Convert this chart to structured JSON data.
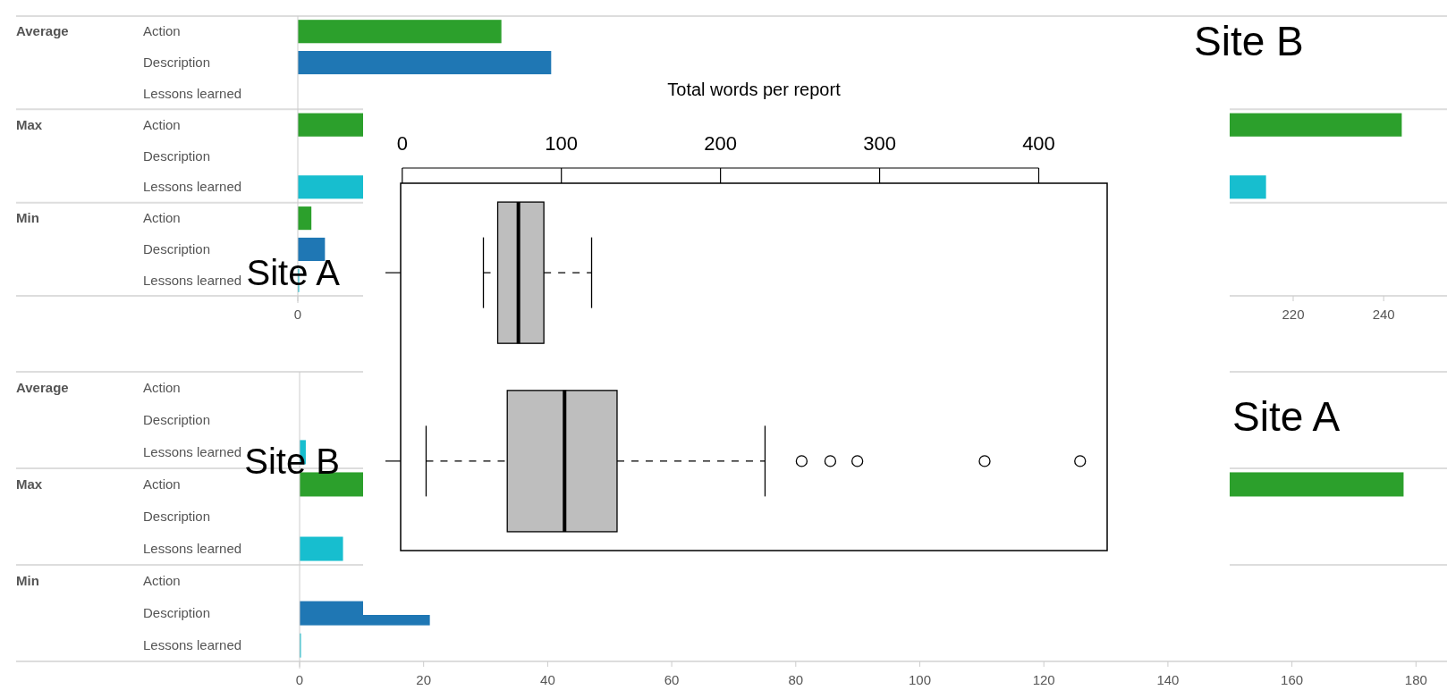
{
  "chart_data": [
    {
      "type": "bar",
      "orientation": "horizontal",
      "title": "Site B",
      "categories": [
        "Action",
        "Description",
        "Lessons learned",
        "Action",
        "Description",
        "Lessons learned",
        "Action",
        "Description",
        "Lessons learned"
      ],
      "values": [
        45,
        56,
        null,
        244,
        null,
        214,
        3,
        6,
        0
      ],
      "colors": [
        "#2ca02c",
        "#1f77b4",
        null,
        "#2ca02c",
        null,
        "#17becf",
        "#2ca02c",
        "#1f77b4",
        "#17becf"
      ],
      "annotations": [
        "Average",
        "Max",
        "Min"
      ],
      "xlim": [
        0,
        254
      ],
      "xticks": [
        0,
        220,
        240
      ]
    },
    {
      "type": "bar",
      "orientation": "horizontal",
      "title": "Site A",
      "categories": [
        "Action",
        "Description",
        "Lessons learned",
        "Action",
        "Description",
        "Lessons learned",
        "Action",
        "Description",
        "Lessons learned"
      ],
      "values": [
        null,
        null,
        1,
        178,
        null,
        7,
        null,
        21,
        0
      ],
      "colors": [
        null,
        null,
        "#17becf",
        "#2ca02c",
        null,
        "#17becf",
        null,
        "#1f77b4",
        "#17becf"
      ],
      "annotations": [
        "Average",
        "Max",
        "Min"
      ],
      "xlim": [
        0,
        185
      ],
      "xticks": [
        0,
        20,
        40,
        60,
        80,
        100,
        120,
        140,
        160,
        180
      ]
    },
    {
      "type": "box",
      "orientation": "horizontal",
      "xlabel": "Total words per report",
      "categories": [
        "Site A",
        "Site B"
      ],
      "boxes": [
        {
          "low": 51,
          "q1": 60,
          "median": 73,
          "q3": 89,
          "high": 119
        },
        {
          "low": 15,
          "q1": 66,
          "median": 102,
          "q3": 135,
          "high": 228,
          "outliers": [
            251,
            269,
            286,
            366,
            426
          ]
        }
      ],
      "xlim": [
        -1,
        443
      ],
      "xticks": [
        0,
        100,
        200,
        300,
        400
      ]
    }
  ]
}
